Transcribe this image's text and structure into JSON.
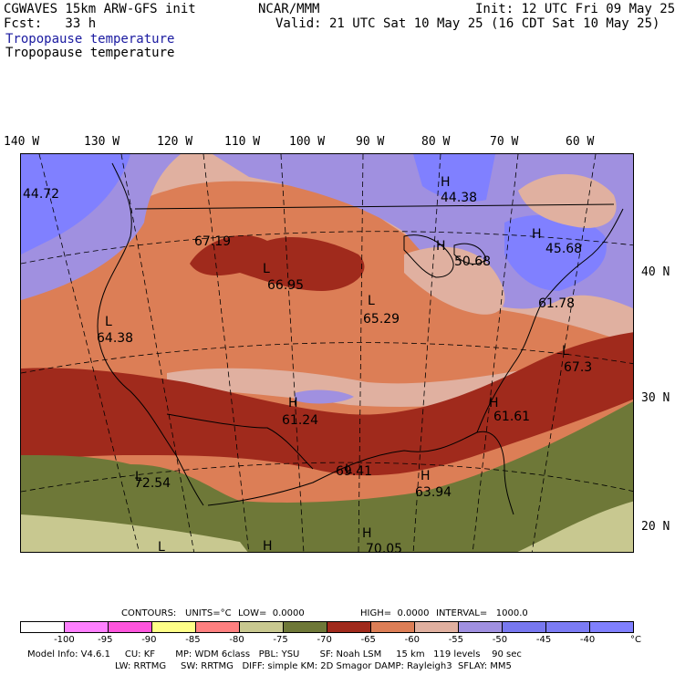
{
  "header": {
    "model": "CGWAVES 15km ARW-GFS init",
    "fcst": "Fcst:   33 h",
    "center": "NCAR/MMM",
    "init": "Init: 12 UTC Fri 09 May 25",
    "valid": "Valid: 21 UTC Sat 10 May 25 (16 CDT Sat 10 May 25)",
    "field_title_1": "Tropopause temperature",
    "field_title_2": "Tropopause temperature"
  },
  "longitude_labels": [
    "140 W",
    "130 W",
    "120 W",
    "110 W",
    "100 W",
    "90 W",
    "80 W",
    "70 W",
    "60 W"
  ],
  "latitude_labels": [
    "40 N",
    "30 N",
    "20 N"
  ],
  "map_labels": {
    "v1": "44.72",
    "v2": "44.38",
    "v3": "67.19",
    "v4": "66.95",
    "v5": "50.68",
    "v6": "45.68",
    "v7": "61.78",
    "v8": "65.29",
    "v9": "64.38",
    "v10": "67.3",
    "v11": "61.24",
    "v12": "61.61",
    "v13": "69.41",
    "v14": "72.54",
    "v15": "63.94",
    "v16": "70.05",
    "h": "H",
    "l": "L"
  },
  "contours": {
    "prefix": "CONTOURS:",
    "units": "UNITS=°C",
    "low": "LOW=  0.0000",
    "high": "HIGH=  0.0000",
    "interval": "INTERVAL=   1000.0"
  },
  "colorbar": {
    "colors": [
      "#ffffff",
      "#ff80ff",
      "#ff55dd",
      "#ffff88",
      "#ff8080",
      "#c8c890",
      "#6e7838",
      "#a02a1c",
      "#dc7e56",
      "#e0b0a0",
      "#a090e0",
      "#7878f0",
      "#7c7cf4",
      "#8080ff"
    ],
    "ticks": [
      "-100",
      "-95",
      "-90",
      "-85",
      "-80",
      "-75",
      "-70",
      "-65",
      "-60",
      "-55",
      "-50",
      "-45",
      "-40",
      "°C"
    ]
  },
  "footer": {
    "line1": "Model Info: V4.6.1     CU: KF       MP: WDM 6class   PBL: YSU       SF: Noah LSM     15 km   119 levels    90 sec",
    "line2": "LW: RRTMG     SW: RRTMG   DIFF: simple KM: 2D Smagor DAMP: Rayleigh3  SFLAY: MM5"
  }
}
